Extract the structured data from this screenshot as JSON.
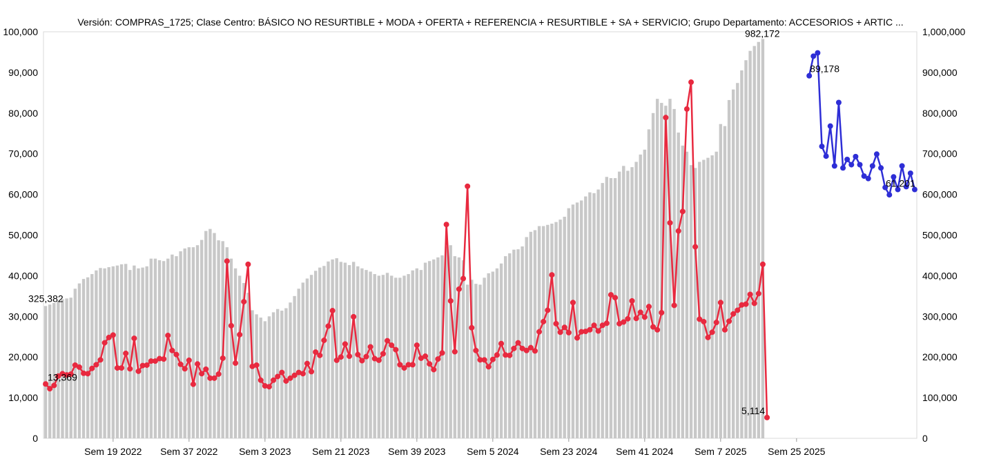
{
  "chart_data": {
    "type": "bar+line",
    "title": "Versión: COMPRAS_1725; Clase Centro: BÁSICO NO RESURTIBLE + MODA + OFERTA + REFERENCIA + RESURTIBLE + SA + SERVICIO; Grupo Departamento: ACCESORIOS + ARTIC ...",
    "x_tick_labels": [
      "Sem 19 2022",
      "Sem 37 2022",
      "Sem 3 2023",
      "Sem 21 2023",
      "Sem 39 2023",
      "Sem 5 2024",
      "Sem 23 2024",
      "Sem 41 2024",
      "Sem 7 2025",
      "Sem 25 2025"
    ],
    "x_tick_index": [
      16,
      34,
      52,
      70,
      88,
      106,
      124,
      142,
      160,
      178
    ],
    "left_axis": {
      "ticks": [
        0,
        10000,
        20000,
        30000,
        40000,
        50000,
        60000,
        70000,
        80000,
        90000,
        100000
      ],
      "ylim": [
        0,
        100000
      ]
    },
    "right_axis": {
      "ticks": [
        0,
        100000,
        200000,
        300000,
        400000,
        500000,
        600000,
        700000,
        800000,
        900000,
        1000000
      ],
      "ylim": [
        0,
        1000000
      ]
    },
    "colors": {
      "bars": "#c8c8c8",
      "actual_line": "#e8293f",
      "forecast_line": "#2e2ed6"
    },
    "bars_axis": "right",
    "bars": [
      325382,
      329000,
      333000,
      338000,
      342000,
      344000,
      346000,
      368000,
      381000,
      392000,
      396000,
      404000,
      413000,
      419000,
      418000,
      421000,
      423000,
      425000,
      428000,
      429000,
      414000,
      425000,
      418000,
      420000,
      423000,
      442000,
      442000,
      438000,
      436000,
      442000,
      452000,
      448000,
      460000,
      467000,
      470000,
      470000,
      475000,
      488000,
      510000,
      515000,
      505000,
      487000,
      485000,
      470000,
      442000,
      418000,
      400000,
      382000,
      358000,
      315000,
      305000,
      297000,
      288000,
      300000,
      310000,
      318000,
      314000,
      320000,
      334000,
      350000,
      368000,
      383000,
      393000,
      402000,
      412000,
      420000,
      424000,
      435000,
      440000,
      443000,
      434000,
      432000,
      426000,
      434000,
      423000,
      418000,
      414000,
      410000,
      404000,
      400000,
      402000,
      407000,
      400000,
      395000,
      395000,
      400000,
      404000,
      413000,
      418000,
      414000,
      432000,
      436000,
      440000,
      445000,
      450000,
      472000,
      475000,
      448000,
      445000,
      438000,
      378000,
      390000,
      380000,
      378000,
      395000,
      406000,
      410000,
      418000,
      430000,
      448000,
      455000,
      464000,
      465000,
      472000,
      495000,
      508000,
      512000,
      522000,
      522000,
      525000,
      528000,
      532000,
      538000,
      545000,
      566000,
      575000,
      580000,
      585000,
      595000,
      605000,
      603000,
      612000,
      628000,
      643000,
      640000,
      640000,
      656000,
      670000,
      658000,
      667000,
      680000,
      698000,
      710000,
      760000,
      800000,
      835000,
      825000,
      818000,
      835000,
      810000,
      752000,
      720000,
      705000,
      672000,
      665000,
      680000,
      685000,
      690000,
      696000,
      705000,
      773000,
      768000,
      832000,
      858000,
      874000,
      905000,
      930000,
      953000,
      965000,
      975000,
      982172
    ],
    "actual_line": [
      13369,
      12200,
      13000,
      15300,
      15900,
      15600,
      15800,
      18000,
      17500,
      16000,
      15900,
      17200,
      18100,
      19300,
      23500,
      24800,
      25400,
      17300,
      17300,
      20900,
      17100,
      24600,
      16500,
      17900,
      18000,
      19000,
      19000,
      19600,
      19500,
      25300,
      21600,
      20600,
      18200,
      17100,
      19200,
      13300,
      18300,
      15900,
      17000,
      14800,
      14800,
      15800,
      19700,
      43600,
      27700,
      18500,
      25500,
      33600,
      42800,
      17700,
      18000,
      14300,
      12900,
      12700,
      14300,
      15200,
      16200,
      14100,
      14800,
      15500,
      16200,
      15900,
      18400,
      16400,
      21200,
      20400,
      24100,
      27600,
      31400,
      19200,
      20000,
      23200,
      20200,
      29900,
      20600,
      19100,
      20100,
      22500,
      19600,
      19200,
      20800,
      24000,
      22900,
      21800,
      18100,
      17300,
      18100,
      18100,
      22900,
      19700,
      20200,
      18300,
      16900,
      19500,
      21000,
      52600,
      33800,
      21300,
      36700,
      39300,
      62000,
      27200,
      21600,
      19300,
      19300,
      17600,
      19400,
      20500,
      23300,
      20500,
      20400,
      22100,
      23500,
      22100,
      21600,
      22300,
      21500,
      26200,
      28700,
      31500,
      40200,
      28200,
      26100,
      27300,
      26000,
      33400,
      24700,
      26200,
      26300,
      26700,
      27800,
      26400,
      27800,
      28300,
      35300,
      34600,
      28200,
      28600,
      29400,
      33800,
      29500,
      31000,
      29800,
      32400,
      27400,
      26700,
      30900,
      78900,
      53000,
      32700,
      51000,
      55800,
      81000,
      87600,
      47100,
      29300,
      28700,
      24800,
      26100,
      28500,
      33400,
      26700,
      28800,
      30600,
      31500,
      32800,
      33000,
      35400,
      33200,
      35600,
      42800,
      5114
    ],
    "forecast_start_index": 181,
    "forecast_line": [
      89178,
      94000,
      94800,
      71800,
      69400,
      76800,
      67000,
      82600,
      66500,
      68600,
      67300,
      69300,
      67300,
      64500,
      63900,
      67000,
      69900,
      66500,
      61700,
      59900,
      64300,
      61200,
      67000,
      61900,
      65200,
      61201
    ],
    "data_labels": {
      "bar_first": "325,382",
      "bar_last": "982,172",
      "actual_first": "13,369",
      "actual_last": "5,114",
      "forecast_first": "89,178",
      "forecast_last": "61,201"
    }
  }
}
